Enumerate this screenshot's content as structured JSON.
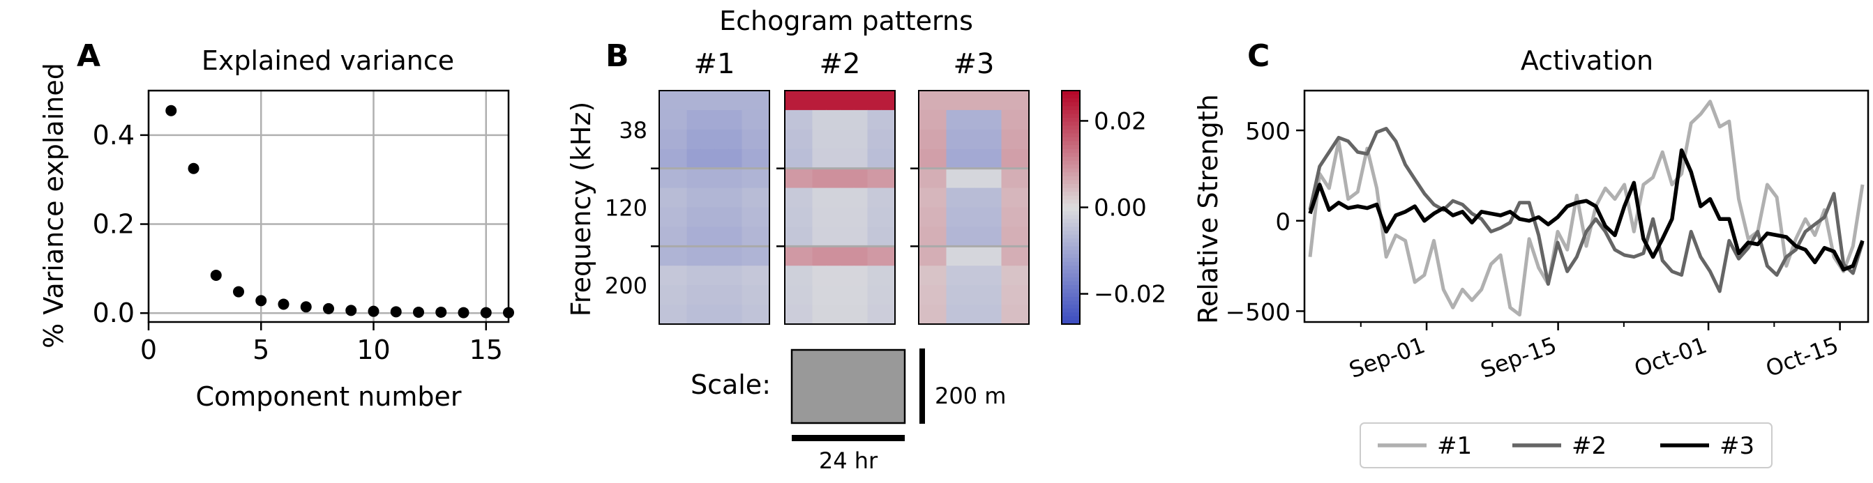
{
  "figure_title": "Echogram patterns",
  "panels": {
    "a": {
      "letter": "A"
    },
    "b": {
      "letter": "B",
      "pattern_labels": [
        "#1",
        "#2",
        "#3"
      ],
      "scale_label": "Scale:",
      "scale_depth": "200 m",
      "scale_time": "24 hr"
    },
    "c": {
      "letter": "C"
    }
  },
  "chart_data": [
    {
      "type": "scatter",
      "title": "Explained variance",
      "xlabel": "Component number",
      "ylabel": "% Variance explained",
      "xlim": [
        0,
        16
      ],
      "ylim": [
        -0.02,
        0.5
      ],
      "xticks": [
        0,
        5,
        10,
        15
      ],
      "xtick_labels": [
        "0",
        "5",
        "10",
        "15"
      ],
      "yticks": [
        0.0,
        0.2,
        0.4
      ],
      "ytick_labels": [
        "0.0",
        "0.2",
        "0.4"
      ],
      "grid": true,
      "x": [
        1,
        2,
        3,
        4,
        5,
        6,
        7,
        8,
        9,
        10,
        11,
        12,
        13,
        14,
        15,
        16
      ],
      "y": [
        0.455,
        0.325,
        0.085,
        0.048,
        0.028,
        0.02,
        0.014,
        0.01,
        0.006,
        0.004,
        0.003,
        0.002,
        0.002,
        0.001,
        0.001,
        0.001
      ],
      "marker_color": "#000000"
    },
    {
      "type": "heatmap",
      "ylabel": "Frequency (kHz)",
      "bands": [
        "38",
        "120",
        "200"
      ],
      "patterns": [
        "#1",
        "#2",
        "#3"
      ],
      "colormap": "coolwarm",
      "colorbar": {
        "min": -0.027,
        "max": 0.027,
        "ticks": [
          0.02,
          0.0,
          -0.02
        ],
        "tick_labels": [
          "0.02",
          "0.00",
          "−0.02"
        ]
      },
      "pattern_summary": {
        "#1": {
          "surface": -0.008,
          "night": -0.01,
          "day": -0.012
        },
        "#2": {
          "surface": 0.024,
          "night": -0.006,
          "day": -0.003
        },
        "#3": {
          "surface": 0.006,
          "night": 0.008,
          "day": -0.01
        }
      },
      "colors": {
        "neg": "#3b4cc0",
        "mid": "#dddddd",
        "pos": "#b40426"
      }
    },
    {
      "type": "line",
      "title": "Activation",
      "ylabel": "Relative Strength",
      "xaxis": "date",
      "x_start": "2014-08-19",
      "x_end": "2014-10-18",
      "ylim": [
        -560,
        720
      ],
      "yticks": [
        -500,
        0,
        500
      ],
      "ytick_labels": [
        "−500",
        "0",
        "500"
      ],
      "xticks": [
        "2014-09-01",
        "2014-09-15",
        "2014-10-01",
        "2014-10-15"
      ],
      "xtick_labels": [
        "Sep-01",
        "Sep-15",
        "Oct-01",
        "Oct-15"
      ],
      "minor_xticks": [
        "2014-08-25",
        "2014-09-08",
        "2014-09-22",
        "2014-10-08"
      ],
      "legend_position": "bottom-center",
      "series": [
        {
          "name": "#1",
          "color": "#b0b0b0",
          "values": [
            -200,
            260,
            180,
            440,
            120,
            160,
            400,
            180,
            -200,
            -80,
            -110,
            -340,
            -300,
            -110,
            -380,
            -480,
            -380,
            -440,
            -380,
            -240,
            -190,
            -480,
            -520,
            -100,
            -260,
            -350,
            -60,
            -160,
            140,
            -140,
            80,
            180,
            120,
            200,
            -60,
            200,
            240,
            380,
            200,
            260,
            540,
            590,
            660,
            520,
            550,
            120,
            -100,
            -60,
            200,
            130,
            -250,
            -100,
            10,
            -80,
            60,
            -200,
            -280,
            -140,
            200
          ]
        },
        {
          "name": "#2",
          "color": "#656565",
          "values": [
            60,
            300,
            380,
            460,
            440,
            380,
            370,
            490,
            510,
            440,
            310,
            230,
            150,
            90,
            60,
            110,
            90,
            40,
            10,
            -60,
            -40,
            -10,
            100,
            100,
            -80,
            -350,
            -120,
            -280,
            -200,
            -60,
            10,
            -60,
            -160,
            -190,
            -200,
            -180,
            10,
            -220,
            -280,
            -300,
            -60,
            -200,
            -280,
            -390,
            -110,
            -210,
            -150,
            -60,
            -250,
            -300,
            -200,
            -160,
            -60,
            -20,
            20,
            150,
            -240,
            -290,
            -120
          ]
        },
        {
          "name": "#3",
          "color": "#000000",
          "values": [
            40,
            200,
            60,
            100,
            70,
            80,
            70,
            90,
            -60,
            30,
            50,
            80,
            0,
            40,
            70,
            30,
            50,
            -10,
            50,
            40,
            30,
            50,
            10,
            0,
            20,
            -20,
            20,
            80,
            100,
            110,
            80,
            -30,
            -80,
            80,
            210,
            -100,
            -200,
            -100,
            10,
            390,
            270,
            80,
            120,
            10,
            10,
            -180,
            -120,
            -130,
            -70,
            -80,
            -90,
            -140,
            -160,
            -230,
            -150,
            -170,
            -270,
            -250,
            -110
          ]
        }
      ]
    }
  ]
}
